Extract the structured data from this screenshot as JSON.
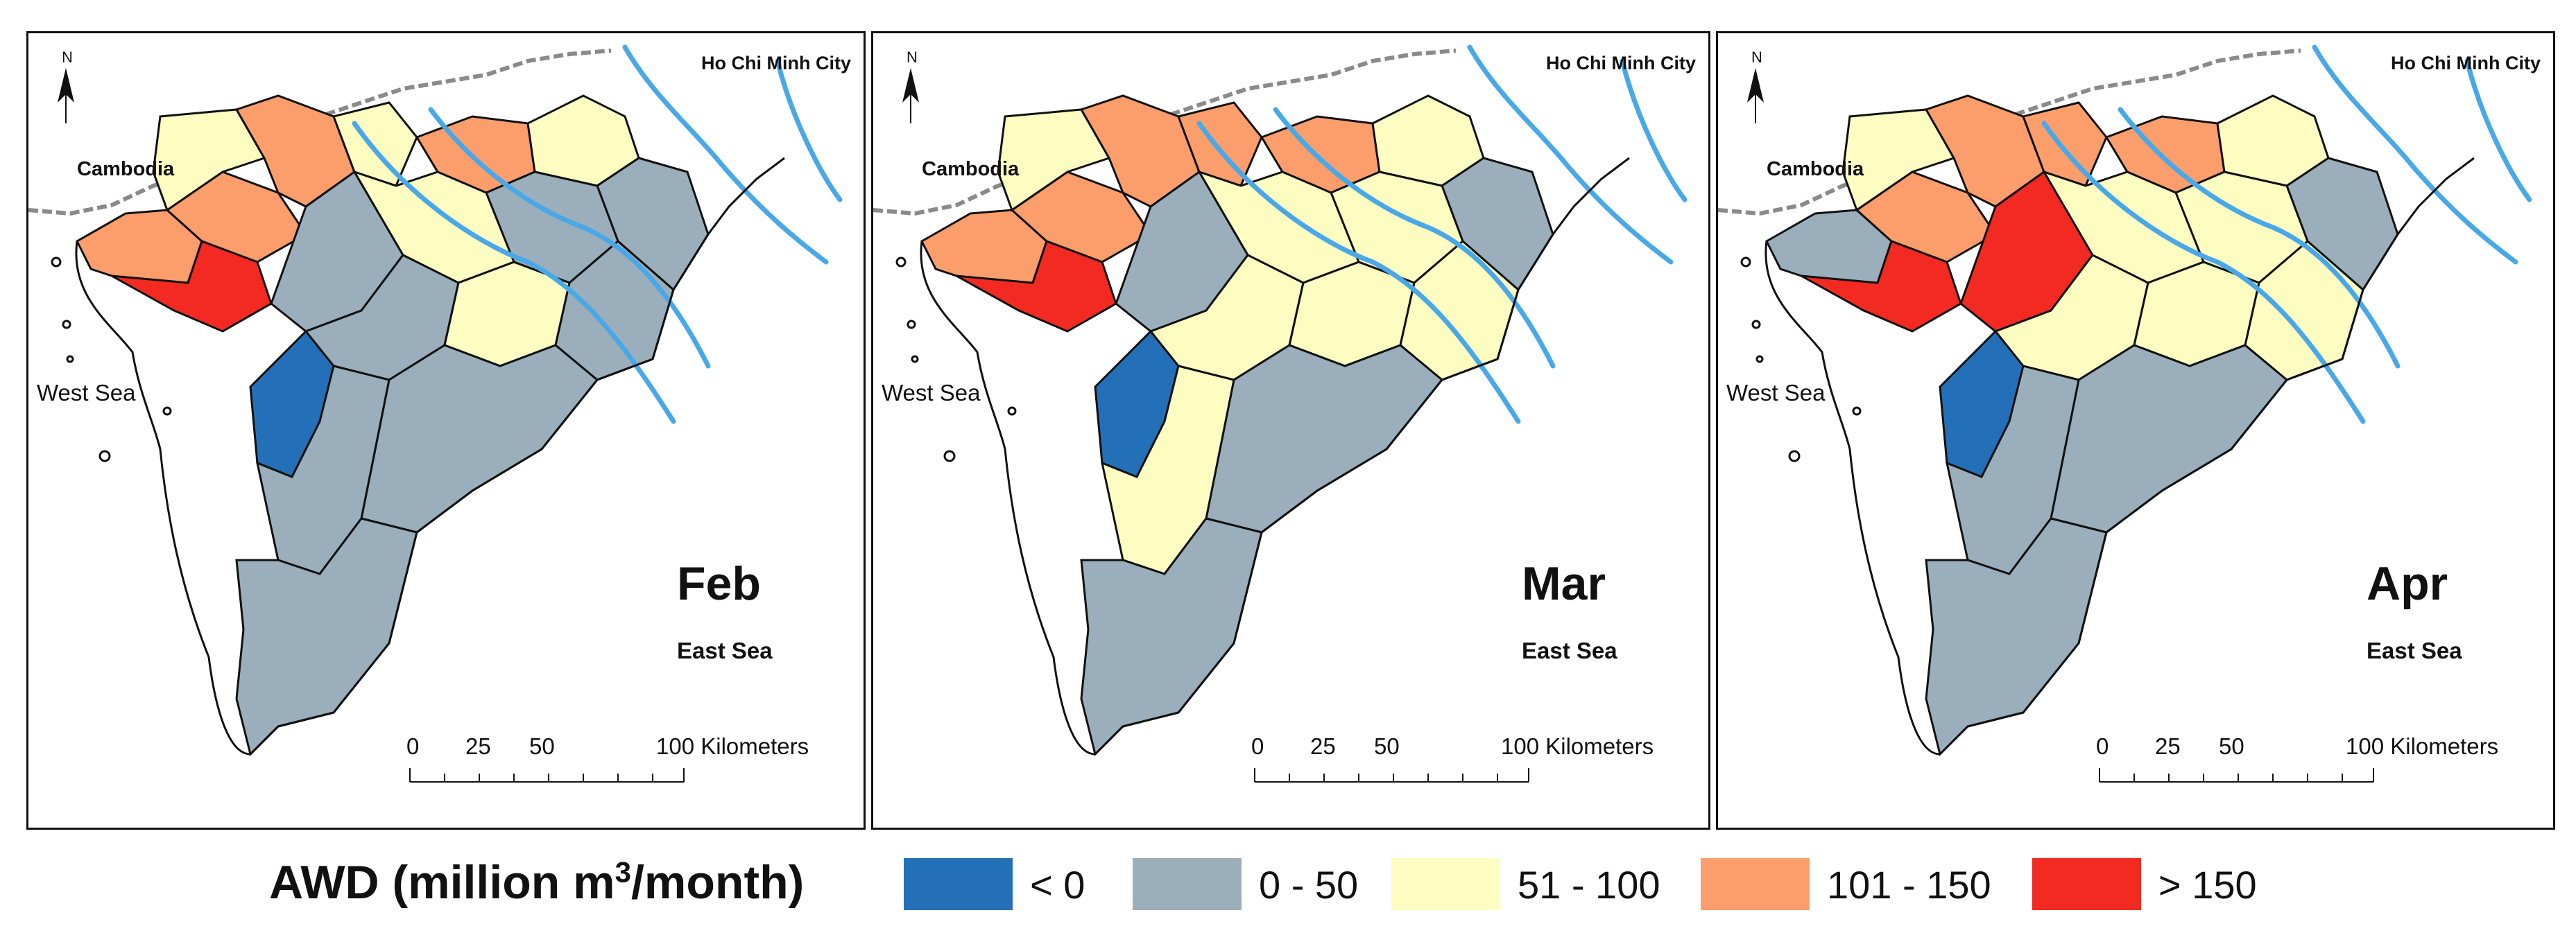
{
  "colors": {
    "cat_negative": "#2470b8",
    "cat_0_50": "#9aafbb",
    "cat_51_100": "#fdfdc2",
    "cat_101_150": "#fb9e6c",
    "cat_150_plus": "#f22a22",
    "river": "#48a8e8",
    "border": "#111111",
    "outside": "#ffffff"
  },
  "map_labels": {
    "north": "N",
    "city": "Ho Chi Minh City",
    "cambodia": "Cambodia",
    "west_sea": "West Sea",
    "east_sea": "East Sea"
  },
  "scale": {
    "ticks": [
      "0",
      "25",
      "50",
      "100 Kilometers"
    ]
  },
  "panels": [
    {
      "month": "Feb",
      "regions": [
        "cat_101_150",
        "cat_101_150",
        "cat_150_plus",
        "cat_51_100",
        "cat_101_150",
        "cat_51_100",
        "cat_101_150",
        "cat_51_100",
        "cat_0_50",
        "cat_0_50",
        "cat_51_100",
        "cat_0_50",
        "cat_0_50",
        "cat_51_100",
        "cat_0_50",
        "cat_0_50",
        "cat_negative",
        "cat_0_50",
        "cat_0_50"
      ]
    },
    {
      "month": "Mar",
      "regions": [
        "cat_101_150",
        "cat_101_150",
        "cat_150_plus",
        "cat_51_100",
        "cat_101_150",
        "cat_101_150",
        "cat_101_150",
        "cat_51_100",
        "cat_0_50",
        "cat_51_100",
        "cat_51_100",
        "cat_0_50",
        "cat_51_100",
        "cat_51_100",
        "cat_51_100",
        "cat_0_50",
        "cat_negative",
        "cat_51_100",
        "cat_0_50"
      ]
    },
    {
      "month": "Apr",
      "regions": [
        "cat_0_50",
        "cat_101_150",
        "cat_150_plus",
        "cat_51_100",
        "cat_101_150",
        "cat_101_150",
        "cat_101_150",
        "cat_51_100",
        "cat_0_50",
        "cat_51_100",
        "cat_51_100",
        "cat_150_plus",
        "cat_51_100",
        "cat_51_100",
        "cat_51_100",
        "cat_0_50",
        "cat_negative",
        "cat_0_50",
        "cat_0_50"
      ]
    }
  ],
  "legend": {
    "title_main": "AWD (million m",
    "title_sup": "3",
    "title_end": "/month)",
    "items": [
      {
        "key": "cat_negative",
        "label": "< 0"
      },
      {
        "key": "cat_0_50",
        "label": "0 - 50"
      },
      {
        "key": "cat_51_100",
        "label": "51 - 100"
      },
      {
        "key": "cat_101_150",
        "label": "101 - 150"
      },
      {
        "key": "cat_150_plus",
        "label": "> 150"
      }
    ]
  }
}
